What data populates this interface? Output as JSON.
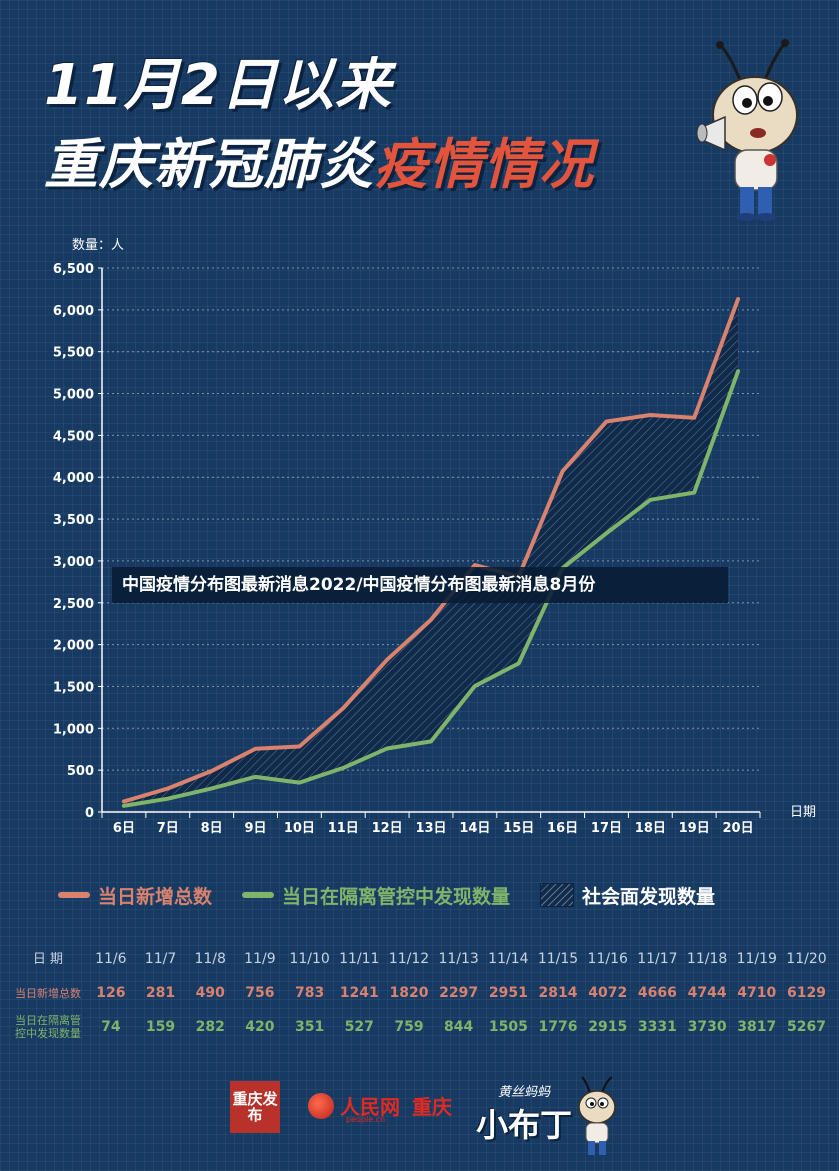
{
  "header": {
    "title_line1": "11月2日以来",
    "title_line2_white": "重庆新冠肺炎",
    "title_line2_red": "疫情情况"
  },
  "overlay_caption": "中国疫情分布图最新消息2022/中国疫情分布图最新消息8月份",
  "legend": {
    "series1": "当日新增总数",
    "series2": "当日在隔离管控中发现数量",
    "area": "社会面发现数量"
  },
  "table": {
    "header_label": "日 期",
    "dates": [
      "11/6",
      "11/7",
      "11/8",
      "11/9",
      "11/10",
      "11/11",
      "11/12",
      "11/13",
      "11/14",
      "11/15",
      "11/16",
      "11/17",
      "11/18",
      "11/19",
      "11/20"
    ],
    "row1_label": "当日新增总数",
    "row1": [
      "126",
      "281",
      "490",
      "756",
      "783",
      "1241",
      "1820",
      "2297",
      "2951",
      "2814",
      "4072",
      "4666",
      "4744",
      "4710",
      "6129"
    ],
    "row2_label": "当日在隔离管控中发现数量",
    "row2": [
      "74",
      "159",
      "282",
      "420",
      "351",
      "527",
      "759",
      "844",
      "1505",
      "1776",
      "2915",
      "3331",
      "3730",
      "3817",
      "5267"
    ]
  },
  "logos": {
    "logo1": "重庆发布",
    "logo2_name": "人民网",
    "logo2_domain": "people.cn",
    "logo2_city": "重庆",
    "logo3_small": "黄丝蚂蚂",
    "logo3_big": "小布丁"
  },
  "colors": {
    "background": "#173a62",
    "series1": "#d9826e",
    "series2": "#7fb56a",
    "title_red": "#e2543b"
  },
  "chart_data": {
    "type": "line",
    "ylabel": "数量：人",
    "xlabel": "日期",
    "ylim": [
      0,
      6500
    ],
    "yticks": [
      "0",
      "500",
      "1,000",
      "1,500",
      "2,000",
      "2,500",
      "3,000",
      "3,500",
      "4,000",
      "4,500",
      "5,000",
      "5,500",
      "6,000",
      "6,500"
    ],
    "categories": [
      "6日",
      "7日",
      "8日",
      "9日",
      "10日",
      "11日",
      "12日",
      "13日",
      "14日",
      "15日",
      "16日",
      "17日",
      "18日",
      "19日",
      "20日"
    ],
    "series": [
      {
        "name": "当日新增总数",
        "values": [
          126,
          281,
          490,
          756,
          783,
          1241,
          1820,
          2297,
          2951,
          2814,
          4072,
          4666,
          4744,
          4710,
          6129
        ]
      },
      {
        "name": "当日在隔离管控中发现数量",
        "values": [
          74,
          159,
          282,
          420,
          351,
          527,
          759,
          844,
          1505,
          1776,
          2915,
          3331,
          3730,
          3817,
          5267
        ]
      }
    ],
    "area_between": "社会面发现数量",
    "grid": true
  }
}
